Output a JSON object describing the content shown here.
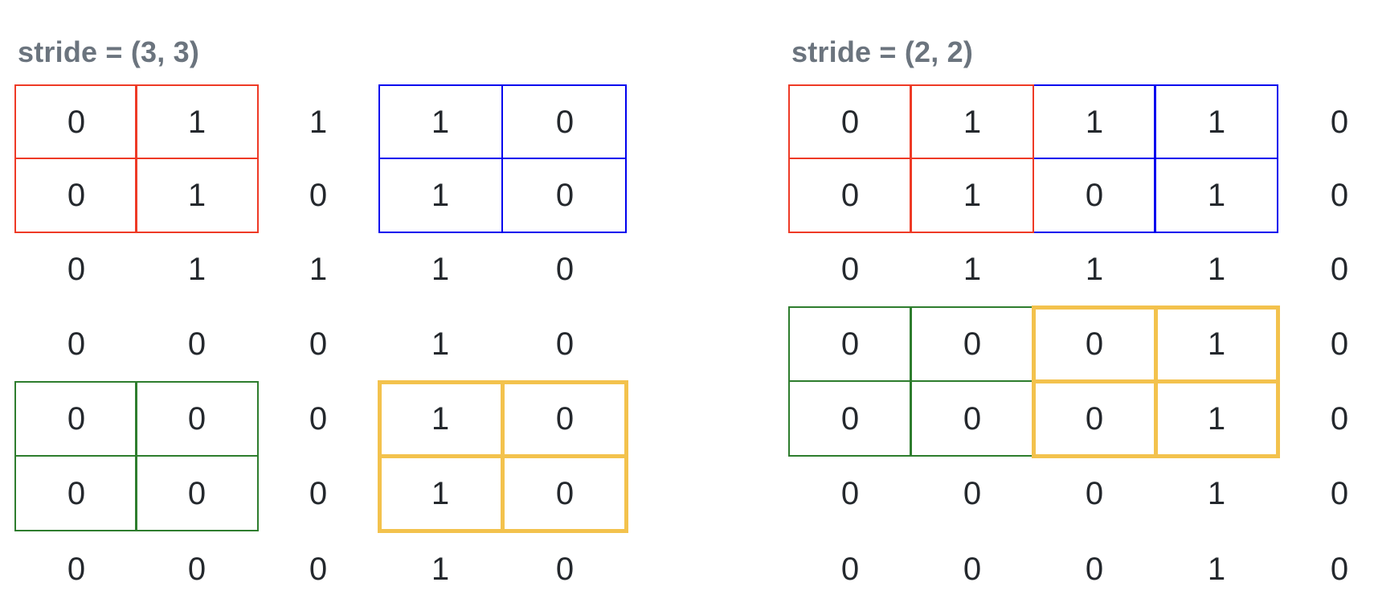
{
  "figure": {
    "description": "Two pooling-window stride illustrations over the same 7x5 binary matrix"
  },
  "panels": [
    {
      "title": "stride = (3, 3)",
      "matrix": [
        [
          0,
          1,
          1,
          1,
          0
        ],
        [
          0,
          1,
          0,
          1,
          0
        ],
        [
          0,
          1,
          1,
          1,
          0
        ],
        [
          0,
          0,
          0,
          1,
          0
        ],
        [
          0,
          0,
          0,
          1,
          0
        ],
        [
          0,
          0,
          0,
          1,
          0
        ],
        [
          0,
          0,
          0,
          1,
          0
        ]
      ],
      "windows": [
        {
          "name": "red-window",
          "color": "#ee3a26",
          "row": 0,
          "col": 0,
          "thick": false
        },
        {
          "name": "blue-window",
          "color": "#0000ee",
          "row": 0,
          "col": 3,
          "thick": false
        },
        {
          "name": "green-window",
          "color": "#2e7d2e",
          "row": 4,
          "col": 0,
          "thick": false
        },
        {
          "name": "yellow-window",
          "color": "#f3c24d",
          "row": 4,
          "col": 3,
          "thick": true
        }
      ]
    },
    {
      "title": "stride = (2, 2)",
      "matrix": [
        [
          0,
          1,
          1,
          1,
          0
        ],
        [
          0,
          1,
          0,
          1,
          0
        ],
        [
          0,
          1,
          1,
          1,
          0
        ],
        [
          0,
          0,
          0,
          1,
          0
        ],
        [
          0,
          0,
          0,
          1,
          0
        ],
        [
          0,
          0,
          0,
          1,
          0
        ],
        [
          0,
          0,
          0,
          1,
          0
        ]
      ],
      "windows": [
        {
          "name": "red-window",
          "color": "#ee3a26",
          "row": 0,
          "col": 0,
          "thick": false
        },
        {
          "name": "blue-window",
          "color": "#0000ee",
          "row": 0,
          "col": 2,
          "thick": false
        },
        {
          "name": "green-window",
          "color": "#2e7d2e",
          "row": 3,
          "col": 0,
          "thick": false
        },
        {
          "name": "yellow-window",
          "color": "#f3c24d",
          "row": 3,
          "col": 2,
          "thick": true
        }
      ]
    }
  ],
  "colors": {
    "window_red": "#ee3a26",
    "window_blue": "#0000ee",
    "window_green": "#2e7d2e",
    "window_yellow": "#f3c24d",
    "title_gray": "#6b747e",
    "digit": "#24282d",
    "background": "#ffffff"
  }
}
